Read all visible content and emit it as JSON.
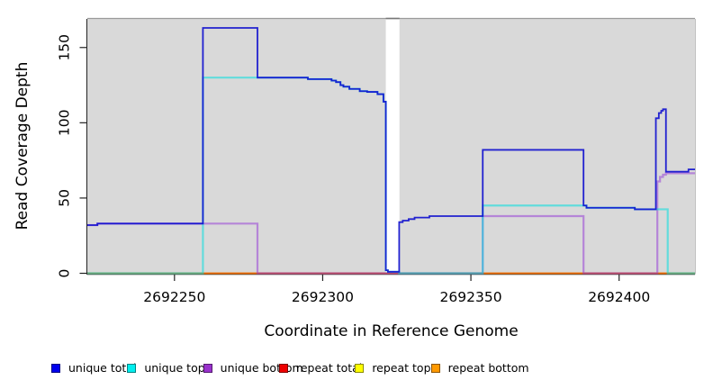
{
  "figure": {
    "xlabel": "Coordinate in Reference Genome",
    "ylabel": "Read Coverage Depth"
  },
  "legend": {
    "items": [
      {
        "label": "unique total",
        "color": "#0000ee"
      },
      {
        "label": "unique top",
        "color": "#00eeee"
      },
      {
        "label": "unique bottom",
        "color": "#9932cc"
      },
      {
        "label": "repeat total",
        "color": "#ee0000"
      },
      {
        "label": "repeat top",
        "color": "#ffff00"
      },
      {
        "label": "repeat bottom",
        "color": "#ff9900"
      }
    ]
  },
  "chart_data": {
    "type": "line",
    "title": "",
    "xlabel": "Coordinate in Reference Genome",
    "ylabel": "Read Coverage Depth",
    "xlim": [
      2692220.6,
      2692425.6
    ],
    "ylim": [
      0,
      169
    ],
    "xticks": [
      2692250,
      2692300,
      2692350,
      2692400
    ],
    "yticks": [
      0,
      50,
      100,
      150
    ],
    "plot_bg": "#d9d9d9",
    "grid": false,
    "legend_position": "bottom",
    "no_data_gap_x": [
      2692321.3,
      2692325.9
    ],
    "series": [
      {
        "name": "repeat bottom",
        "color": "#ff9100",
        "opacity": 0.9,
        "width": 1.7,
        "points": [
          [
            2692220.6,
            0
          ]
        ]
      },
      {
        "name": "repeat top",
        "color": "#ffe800",
        "opacity": 0.65,
        "width": 1.7,
        "points": [
          [
            2692220.6,
            0
          ]
        ]
      },
      {
        "name": "repeat total",
        "color": "#d40000",
        "opacity": 0.5,
        "width": 1.7,
        "points": [
          [
            2692220.6,
            0
          ]
        ]
      },
      {
        "name": "unique bottom",
        "color": "#9232d8",
        "opacity": 0.5,
        "width": 2.2,
        "points": [
          [
            2692220.6,
            32
          ],
          [
            2692224,
            33
          ],
          [
            2692278,
            0
          ],
          [
            2692354,
            38
          ],
          [
            2692388,
            0
          ],
          [
            2692412.9,
            61
          ],
          [
            2692413.8,
            64
          ],
          [
            2692414.8,
            65.5
          ],
          [
            2692415.8,
            66.5
          ]
        ]
      },
      {
        "name": "unique top",
        "color": "#00dede",
        "opacity": 0.55,
        "width": 2.2,
        "points": [
          [
            2692220.6,
            0
          ],
          [
            2692259.6,
            130
          ],
          [
            2692295,
            129
          ],
          [
            2692303,
            128
          ],
          [
            2692304.5,
            127
          ],
          [
            2692306,
            125
          ],
          [
            2692307,
            124
          ],
          [
            2692309,
            122.5
          ],
          [
            2692312.5,
            121
          ],
          [
            2692315,
            120.5
          ],
          [
            2692318.5,
            119
          ],
          [
            2692320.5,
            114
          ],
          [
            2692321.3,
            2
          ],
          [
            2692322,
            1
          ],
          [
            2692325.8,
            0
          ],
          [
            2692354,
            45
          ],
          [
            2692388,
            45
          ],
          [
            2692389,
            43.5
          ],
          [
            2692405.3,
            42.5
          ],
          [
            2692416.4,
            0
          ]
        ]
      },
      {
        "name": "unique total",
        "color": "#1111cf",
        "opacity": 0.92,
        "width": 1.8,
        "points": [
          [
            2692220.6,
            32
          ],
          [
            2692224,
            33
          ],
          [
            2692259.6,
            163
          ],
          [
            2692278,
            130
          ],
          [
            2692295,
            129
          ],
          [
            2692303,
            128
          ],
          [
            2692304.5,
            127
          ],
          [
            2692306,
            125
          ],
          [
            2692307,
            124
          ],
          [
            2692309,
            122.5
          ],
          [
            2692312.5,
            121
          ],
          [
            2692315,
            120.5
          ],
          [
            2692318.5,
            119
          ],
          [
            2692320.5,
            114
          ],
          [
            2692321.3,
            2
          ],
          [
            2692322,
            1
          ],
          [
            2692325.8,
            34
          ],
          [
            2692327,
            35
          ],
          [
            2692329,
            36
          ],
          [
            2692331,
            37
          ],
          [
            2692336,
            38
          ],
          [
            2692354,
            82
          ],
          [
            2692388,
            45
          ],
          [
            2692389,
            43.5
          ],
          [
            2692405.3,
            42.5
          ],
          [
            2692412.4,
            103
          ],
          [
            2692413.4,
            106.5
          ],
          [
            2692414.2,
            108
          ],
          [
            2692414.8,
            109
          ],
          [
            2692415.8,
            67.5
          ],
          [
            2692423.4,
            69
          ]
        ]
      }
    ]
  }
}
